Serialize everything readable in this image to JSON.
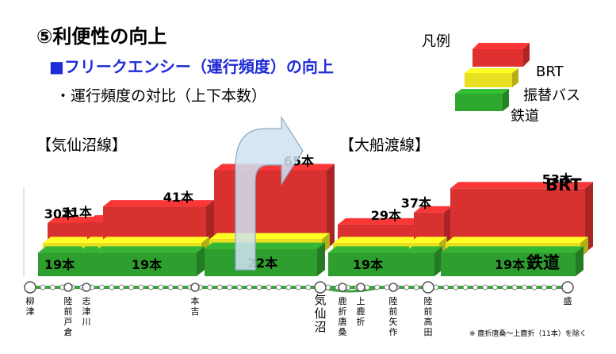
{
  "heading": "⑤利便性の向上",
  "subheading": "■フリークエンシー（運行頻度）の向上",
  "bullet": "・運行頻度の対比（上下本数）",
  "line_left": "【気仙沼線】",
  "line_right": "【大船渡線】",
  "legend": {
    "title": "凡例",
    "items": [
      {
        "label": "BRT",
        "color": "#e03030"
      },
      {
        "label": "振替バス",
        "color": "#e8e020"
      },
      {
        "label": "鉄道",
        "color": "#2ea82e"
      }
    ]
  },
  "note": "※ 鹿折唐桑～上鹿折（11本）を除く",
  "colors": {
    "brt": "#d93030",
    "bus": "#e6e01e",
    "rail": "#2e9e2e",
    "track": "#3aa63a"
  },
  "chart_data": {
    "type": "bar",
    "unit": "本",
    "segments": [
      {
        "line": "気仙沼線",
        "from": "柳津",
        "to": "陸前戸倉",
        "rail": 19,
        "brt": 30,
        "rail_label": "19本",
        "brt_label": "30本"
      },
      {
        "line": "気仙沼線",
        "from": "陸前戸倉",
        "to": "志津川",
        "rail": 19,
        "brt": 31,
        "rail_label": "",
        "brt_label": "31本"
      },
      {
        "line": "気仙沼線",
        "from": "志津川",
        "to": "本吉",
        "rail": 19,
        "brt": 41,
        "rail_label": "19本",
        "brt_label": "41本"
      },
      {
        "line": "気仙沼線",
        "from": "本吉",
        "to": "気仙沼",
        "rail": 22,
        "brt": 65,
        "rail_label": "22本",
        "brt_label": "65本"
      },
      {
        "line": "大船渡線",
        "from": "気仙沼",
        "to": "陸前矢作",
        "rail": 19,
        "brt": 29,
        "rail_label": "19本",
        "brt_label": "29本"
      },
      {
        "line": "大船渡線",
        "from": "陸前矢作",
        "to": "陸前高田",
        "rail": 19,
        "brt": 37,
        "rail_label": "",
        "brt_label": "37本"
      },
      {
        "line": "大船渡線",
        "from": "陸前高田",
        "to": "盛",
        "rail": 19,
        "brt": 53,
        "rail_label": "19本",
        "brt_label": "53本"
      }
    ],
    "end_label_brt": "BRT",
    "end_label_rail": "鉄道",
    "stations": [
      "柳津",
      "陸前戸倉",
      "志津川",
      "本吉",
      "気仙沼",
      "鹿折唐桑",
      "上鹿折",
      "陸前矢作",
      "陸前高田",
      "盛"
    ]
  }
}
